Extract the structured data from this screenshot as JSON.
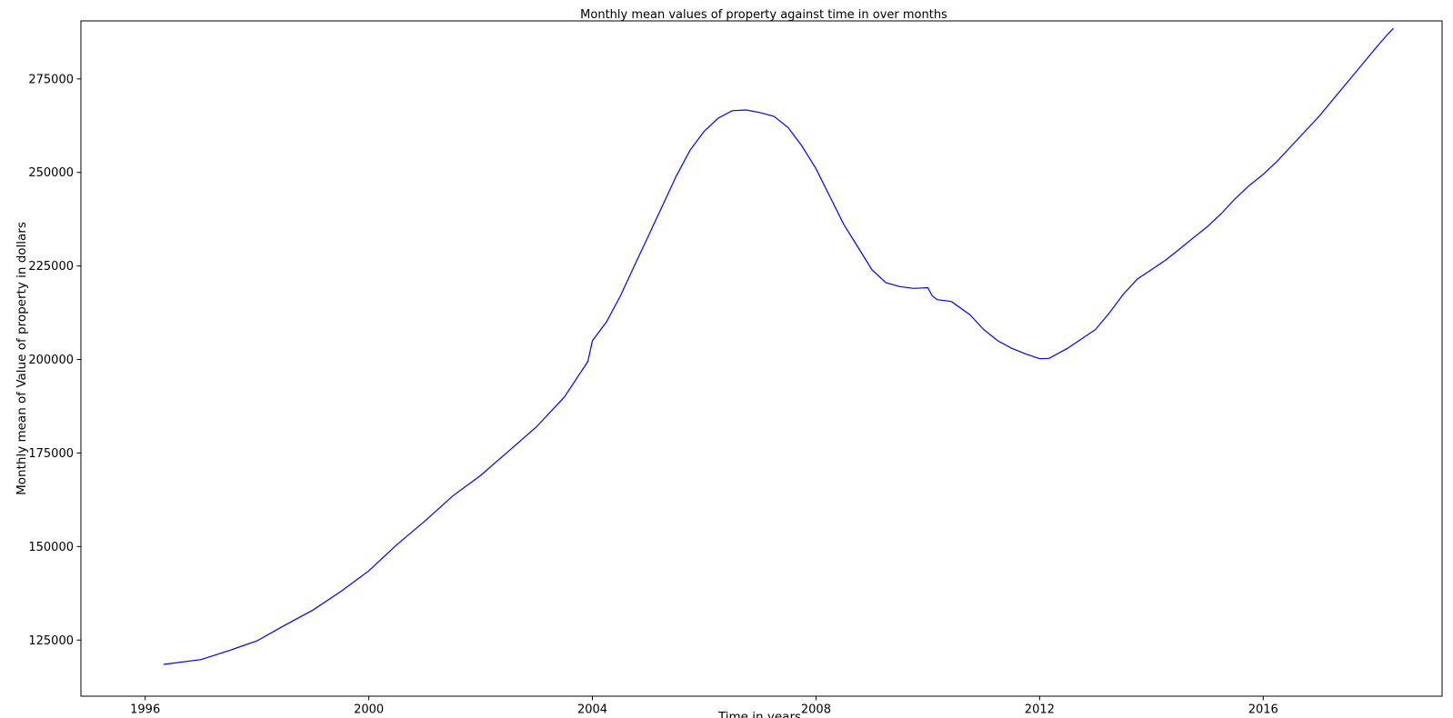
{
  "chart_data": {
    "type": "line",
    "title": "Monthly mean values of property against time in over months",
    "xlabel": "Time in years",
    "ylabel": "Monthly mean of Value of property in dollars",
    "x_ticks": [
      1996,
      2000,
      2004,
      2008,
      2012,
      2016
    ],
    "y_ticks": [
      125000,
      150000,
      175000,
      200000,
      225000,
      250000,
      275000
    ],
    "xlim": [
      1994.85,
      2019.2
    ],
    "ylim": [
      110000,
      290500
    ],
    "grid": false,
    "legend": "none",
    "series_color": "#0000ff",
    "series": [
      {
        "x": [
          1996.33,
          1997.0,
          1997.5,
          1998.0,
          1998.5,
          1999.0,
          1999.5,
          2000.0,
          2000.5,
          2001.0,
          2001.5,
          2002.0,
          2002.5,
          2003.0,
          2003.5,
          2003.92,
          2004.0,
          2004.25,
          2004.5,
          2004.75,
          2005.0,
          2005.25,
          2005.5,
          2005.75,
          2006.0,
          2006.25,
          2006.5,
          2006.75,
          2007.0,
          2007.25,
          2007.5,
          2007.75,
          2008.0,
          2008.25,
          2008.5,
          2008.75,
          2009.0,
          2009.25,
          2009.5,
          2009.75,
          2010.0,
          2010.08,
          2010.17,
          2010.42,
          2010.75,
          2011.0,
          2011.25,
          2011.5,
          2011.75,
          2012.0,
          2012.17,
          2012.5,
          2012.75,
          2013.0,
          2013.25,
          2013.5,
          2013.75,
          2014.0,
          2014.25,
          2014.5,
          2014.75,
          2015.0,
          2015.25,
          2015.5,
          2015.75,
          2016.0,
          2016.25,
          2016.5,
          2016.75,
          2017.0,
          2017.25,
          2017.5,
          2017.75,
          2018.0,
          2018.2,
          2018.33
        ],
        "y": [
          118500,
          119800,
          122200,
          124800,
          129000,
          133000,
          138000,
          143500,
          150500,
          156800,
          163500,
          169000,
          175500,
          182000,
          190000,
          199500,
          205000,
          210000,
          217000,
          225000,
          233000,
          241000,
          249000,
          256000,
          261000,
          264500,
          266500,
          266700,
          266000,
          265000,
          262000,
          257000,
          251000,
          243500,
          236000,
          230000,
          224000,
          220500,
          219500,
          219000,
          219200,
          217000,
          216000,
          215500,
          212000,
          208000,
          205000,
          203000,
          201500,
          200200,
          200300,
          203000,
          205500,
          208000,
          212500,
          217500,
          221500,
          224000,
          226500,
          229500,
          232500,
          235500,
          239000,
          243000,
          246500,
          249500,
          253000,
          257000,
          261000,
          265000,
          269500,
          274000,
          278500,
          283000,
          286500,
          288500
        ]
      }
    ]
  }
}
